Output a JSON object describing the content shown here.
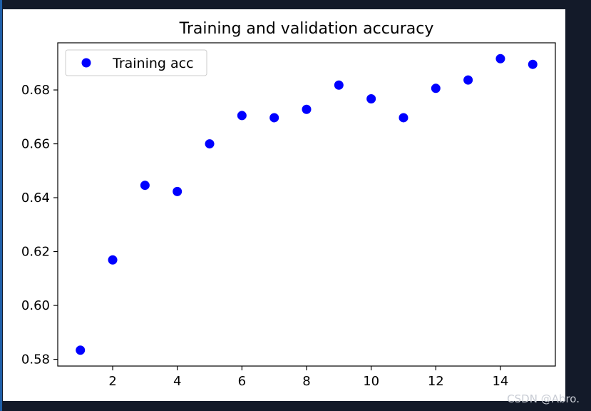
{
  "chart_data": {
    "type": "scatter",
    "title": "Training and validation accuracy",
    "xlabel": "",
    "ylabel": "",
    "xlim": [
      0.3,
      15.7
    ],
    "ylim": [
      0.5775,
      0.6975
    ],
    "x_ticks": [
      2,
      4,
      6,
      8,
      10,
      12,
      14
    ],
    "x_tick_labels": [
      "2",
      "4",
      "6",
      "8",
      "10",
      "12",
      "14"
    ],
    "y_ticks": [
      0.58,
      0.6,
      0.62,
      0.64,
      0.66,
      0.68
    ],
    "y_tick_labels": [
      "0.58",
      "0.60",
      "0.62",
      "0.64",
      "0.66",
      "0.68"
    ],
    "grid": false,
    "legend_position": "top-left",
    "series": [
      {
        "name": "Training acc",
        "color": "#0000ff",
        "marker": "circle",
        "x": [
          1,
          2,
          3,
          4,
          5,
          6,
          7,
          8,
          9,
          10,
          11,
          12,
          13,
          14,
          15
        ],
        "y": [
          0.5834,
          0.6169,
          0.6446,
          0.6423,
          0.66,
          0.6705,
          0.6697,
          0.6728,
          0.6818,
          0.6767,
          0.6697,
          0.6806,
          0.6837,
          0.6916,
          0.6895
        ]
      }
    ]
  },
  "watermark": "CSDN @Abro."
}
